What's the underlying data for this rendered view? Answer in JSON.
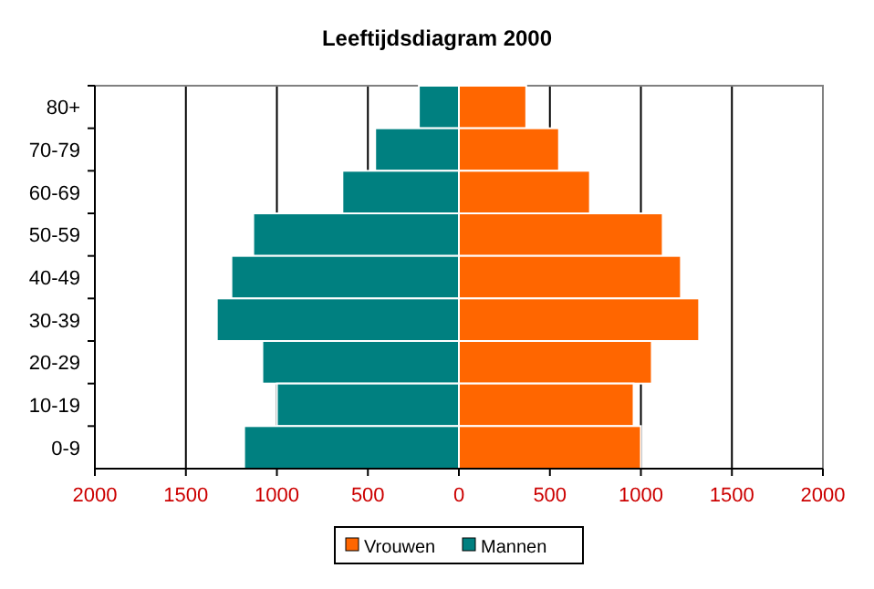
{
  "chart_data": {
    "type": "bar",
    "title": "Leeftijdsdiagram 2000",
    "orientation": "horizontal",
    "stacked": true,
    "categories": [
      "80+",
      "70-79",
      "60-69",
      "50-59",
      "40-49",
      "30-39",
      "20-29",
      "10-19",
      "0-9"
    ],
    "series": [
      {
        "name": "Vrouwen",
        "color": "#ff6600",
        "values": [
          370,
          550,
          720,
          1120,
          1220,
          1320,
          1060,
          960,
          1000
        ]
      },
      {
        "name": "Mannen",
        "color": "#008080",
        "values": [
          -220,
          -460,
          -640,
          -1130,
          -1250,
          -1330,
          -1080,
          -1000,
          -1180
        ]
      }
    ],
    "xlim": [
      -2000,
      2000
    ],
    "xticks": [
      {
        "value": -2000,
        "label": "2000"
      },
      {
        "value": -1500,
        "label": "1500"
      },
      {
        "value": -1000,
        "label": "1000"
      },
      {
        "value": -500,
        "label": "500"
      },
      0,
      500,
      1000,
      1500,
      2000
    ],
    "grid": "x",
    "legend": "bottom"
  }
}
